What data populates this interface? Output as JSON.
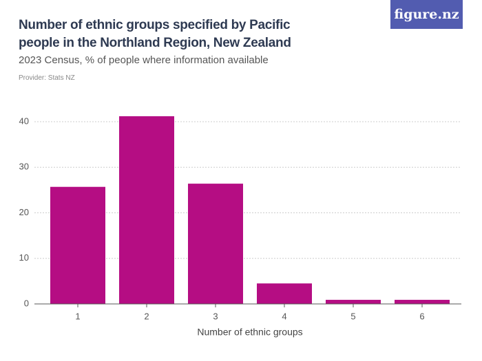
{
  "chart_data": {
    "type": "bar",
    "title": "Number of ethnic groups specified by Pacific people in the Northland Region, New Zealand",
    "subtitle": "2023 Census, % of people where information available",
    "provider": "Provider: Stats NZ",
    "logo": "figure.nz",
    "x_label": "Number of ethnic groups",
    "categories": [
      "1",
      "2",
      "3",
      "4",
      "5",
      "6"
    ],
    "values": [
      25.7,
      41.2,
      26.4,
      4.5,
      0.9,
      0.9
    ],
    "color": "#b50d83",
    "ylim": [
      0,
      45
    ],
    "yticks": [
      0,
      10,
      20,
      30,
      40
    ],
    "grid": true
  }
}
